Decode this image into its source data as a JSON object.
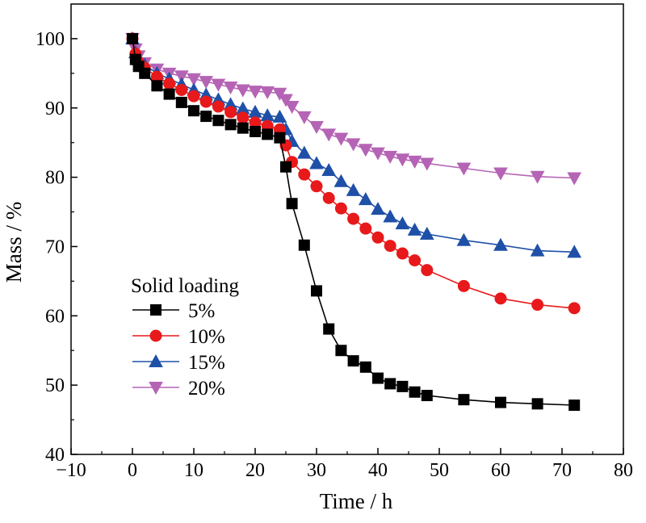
{
  "chart_data": {
    "type": "line",
    "title": "",
    "xlabel": "Time / h",
    "ylabel": "Mass / %",
    "xlim": [
      -10,
      80
    ],
    "ylim": [
      40,
      105
    ],
    "xticks": [
      -10,
      0,
      10,
      20,
      30,
      40,
      50,
      60,
      70,
      80
    ],
    "yticks": [
      40,
      50,
      60,
      70,
      80,
      90,
      100
    ],
    "grid": false,
    "legend": {
      "title": "Solid loading",
      "placement": "lower-left"
    },
    "series": [
      {
        "name": "5%",
        "color": "#000000",
        "marker": "square",
        "x": [
          0,
          0.5,
          1,
          2,
          4,
          6,
          8,
          10,
          12,
          14,
          16,
          18,
          20,
          22,
          24,
          25,
          26,
          28,
          30,
          32,
          34,
          36,
          38,
          40,
          42,
          44,
          46,
          48,
          54,
          60,
          66,
          72
        ],
        "y": [
          100,
          97.0,
          96.0,
          95.0,
          93.2,
          92.0,
          90.8,
          89.6,
          88.8,
          88.2,
          87.6,
          87.1,
          86.6,
          86.2,
          85.7,
          81.5,
          76.2,
          70.2,
          63.6,
          58.1,
          55.0,
          53.5,
          52.6,
          51.0,
          50.2,
          49.8,
          49.0,
          48.5,
          47.9,
          47.5,
          47.3,
          47.1
        ]
      },
      {
        "name": "10%",
        "color": "#e8191b",
        "marker": "circle",
        "x": [
          0,
          0.5,
          1,
          2,
          4,
          6,
          8,
          10,
          12,
          14,
          16,
          18,
          20,
          22,
          24,
          25,
          26,
          28,
          30,
          32,
          34,
          36,
          38,
          40,
          42,
          44,
          46,
          48,
          54,
          60,
          66,
          72
        ],
        "y": [
          100,
          97.8,
          96.6,
          95.8,
          94.5,
          93.5,
          92.6,
          91.7,
          90.9,
          90.2,
          89.4,
          88.6,
          87.9,
          87.4,
          86.9,
          84.6,
          82.2,
          80.4,
          78.7,
          77.0,
          75.5,
          74.0,
          72.6,
          71.3,
          70.1,
          69.0,
          68.0,
          66.6,
          64.3,
          62.5,
          61.6,
          61.1
        ]
      },
      {
        "name": "15%",
        "color": "#1f50a8",
        "marker": "triangle-up",
        "x": [
          0,
          0.5,
          1,
          2,
          4,
          6,
          8,
          10,
          12,
          14,
          16,
          18,
          20,
          22,
          24,
          25,
          26,
          28,
          30,
          32,
          34,
          36,
          38,
          40,
          42,
          44,
          46,
          48,
          54,
          60,
          66,
          72
        ],
        "y": [
          100,
          98.0,
          97.0,
          96.2,
          95.0,
          94.2,
          93.4,
          92.6,
          91.9,
          91.2,
          90.5,
          89.9,
          89.4,
          88.9,
          88.7,
          86.9,
          85.2,
          83.5,
          82.0,
          81.0,
          79.4,
          78.1,
          76.8,
          75.4,
          74.3,
          73.3,
          72.4,
          71.8,
          70.9,
          70.2,
          69.4,
          69.2
        ]
      },
      {
        "name": "20%",
        "color": "#b564b5",
        "marker": "triangle-down",
        "x": [
          0,
          0.5,
          1,
          2,
          4,
          6,
          8,
          10,
          12,
          14,
          16,
          18,
          20,
          22,
          24,
          25,
          26,
          28,
          30,
          32,
          34,
          36,
          38,
          40,
          42,
          44,
          46,
          48,
          54,
          60,
          66,
          72
        ],
        "y": [
          100,
          98.5,
          97.5,
          96.5,
          95.6,
          95.0,
          94.6,
          94.2,
          93.8,
          93.4,
          93.0,
          92.6,
          92.4,
          92.3,
          92.1,
          91.2,
          90.2,
          88.7,
          87.3,
          86.2,
          85.6,
          84.8,
          84.0,
          83.5,
          83.0,
          82.6,
          82.3,
          82.0,
          81.3,
          80.6,
          80.1,
          79.9
        ]
      }
    ]
  }
}
